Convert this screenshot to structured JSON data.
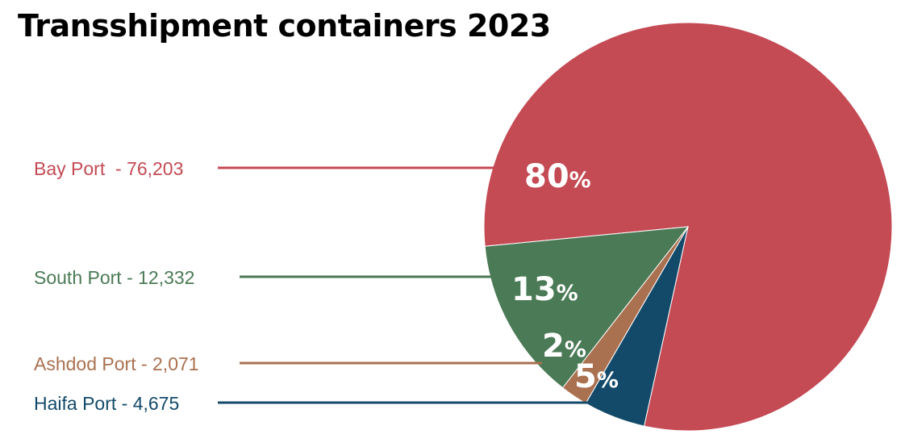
{
  "chart_data": {
    "type": "pie",
    "title": "Transshipment containers 2023",
    "slices": [
      {
        "label": "Bay Port  - 76,203",
        "value": 76203,
        "percent": "80",
        "color": "#c44a54"
      },
      {
        "label": "Haifa Port - 4,675",
        "value": 4675,
        "percent": "5",
        "color": "#134a6a"
      },
      {
        "label": "Ashdod Port - 2,071",
        "value": 2071,
        "percent": "2",
        "color": "#aa7150"
      },
      {
        "label": "South Port - 12,332",
        "value": 12332,
        "percent": "13",
        "color": "#4b7a56"
      }
    ],
    "percent_suffix": "%"
  }
}
